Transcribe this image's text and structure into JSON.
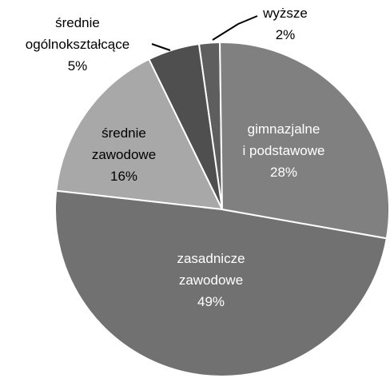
{
  "chart_data": {
    "type": "pie",
    "categories": [
      [
        "gimnazjalne",
        "i podstawowe"
      ],
      [
        "zasadnicze",
        "zawodowe"
      ],
      [
        "średnie",
        "zawodowe"
      ],
      [
        "średnie",
        "ogólnokształcące"
      ],
      [
        "wyższe"
      ]
    ],
    "values": [
      28,
      49,
      16,
      5,
      2
    ],
    "value_labels": [
      "28%",
      "49%",
      "16%",
      "5%",
      "2%"
    ],
    "colors": [
      "#808080",
      "#717171",
      "#a8a8a8",
      "#4f4f4f",
      "#5e5e5e"
    ]
  }
}
